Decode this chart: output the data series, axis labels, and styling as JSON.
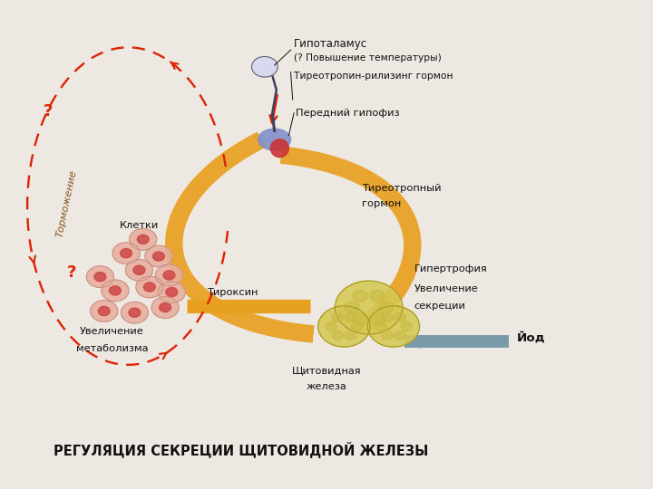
{
  "title": "РЕГУЛЯЦИЯ СЕКРЕЦИИ ЩИТОВИДНОЙ ЖЕЛЕЗЫ",
  "title_fontsize": 10.5,
  "labels": {
    "hypothalamus_line1": "Гипоталамус",
    "hypothalamus_line2": "(? Повышение температуры)",
    "releasing": "Тиреотропин-рилизинг гормон",
    "pituitary": "Передний гипофиз",
    "tsh_line1": "Тиреотропный",
    "tsh_line2": "гормон",
    "hypertrophy": "Гипертрофия",
    "increased_secretion_line1": "Увеличение",
    "increased_secretion_line2": "секреции",
    "thyroid_line1": "Щитовидная",
    "thyroid_line2": "железа",
    "iodine": "Йод",
    "thyroxine": "Тироксин",
    "cells": "Клетки",
    "metabolism_line1": "Увеличение",
    "metabolism_line2": "метаболизма",
    "inhibition": "Торможение",
    "question1": "?",
    "question2": "?"
  },
  "colors": {
    "orange": "#E8A020",
    "red_dashed": "#DD2200",
    "gray_arrow": "#7a9aaa",
    "text": "#111111",
    "cell_pink": "#E8AE9E",
    "cell_nucleus": "#CC4444",
    "thyroid_yellow": "#D4C855",
    "pituitary_blue": "#8090C8",
    "pituitary_red": "#CC3333",
    "neuron_fill": "#d8d8ee",
    "background": "#ede9e2",
    "inhibition_text": "#885522"
  }
}
